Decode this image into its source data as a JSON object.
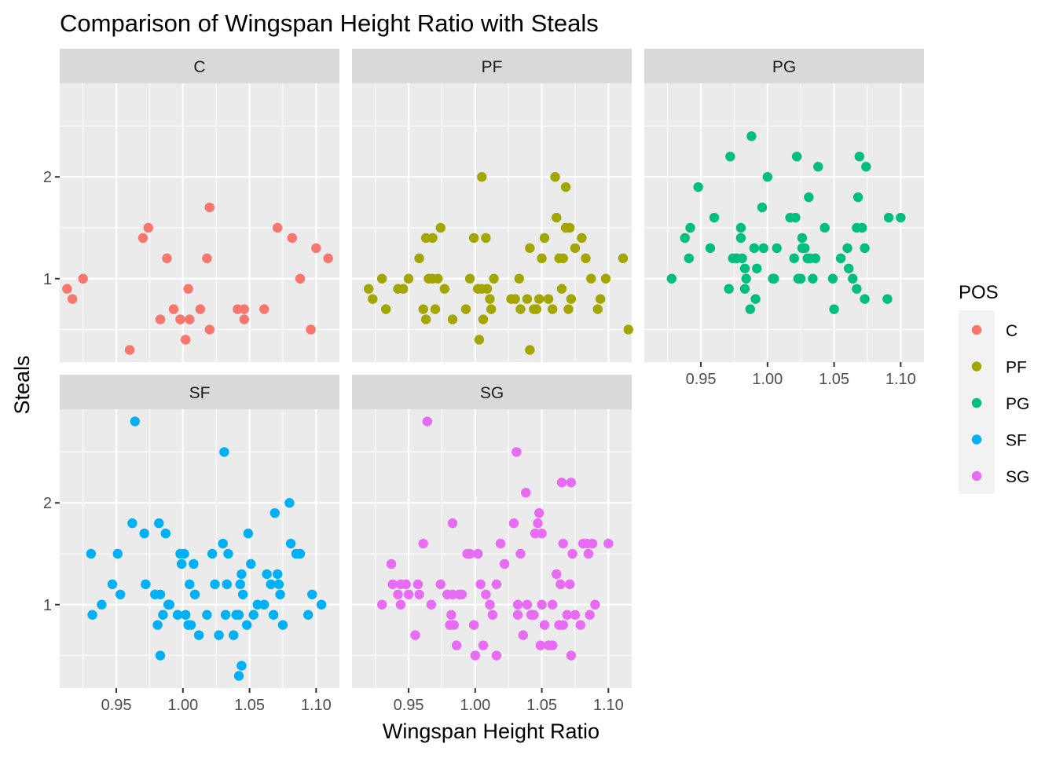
{
  "chart_data": {
    "type": "scatter",
    "title": "Comparison of Wingspan Height Ratio with Steals",
    "xlabel": "Wingspan Height Ratio",
    "ylabel": "Steals",
    "x_ticks": [
      0.95,
      1.0,
      1.05,
      1.1
    ],
    "x_tick_labels": [
      "0.95",
      "1.00",
      "1.05",
      "1.10"
    ],
    "y_ticks": [
      1,
      2
    ],
    "y_tick_labels": [
      "1",
      "2"
    ],
    "xlim": [
      0.9075,
      1.1175
    ],
    "ylim": [
      0.18,
      2.92
    ],
    "grid": true,
    "legend": {
      "title": "POS",
      "position": "right",
      "entries": [
        "C",
        "PF",
        "PG",
        "SF",
        "SG"
      ]
    },
    "colors": {
      "C": "#F8766D",
      "PF": "#A3A500",
      "PG": "#00BF7D",
      "SF": "#00B0F6",
      "SG": "#E76BF3",
      "panel_bg": "#EBEBEB",
      "strip_bg": "#D9D9D9",
      "grid": "#FFFFFF"
    },
    "panels": [
      {
        "label": "C",
        "points": [
          [
            0.913,
            0.9
          ],
          [
            0.917,
            0.8
          ],
          [
            0.925,
            1.0
          ],
          [
            0.96,
            0.3
          ],
          [
            0.97,
            1.4
          ],
          [
            0.974,
            1.5
          ],
          [
            0.983,
            0.6
          ],
          [
            0.988,
            1.2
          ],
          [
            0.993,
            0.7
          ],
          [
            0.998,
            0.6
          ],
          [
            1.002,
            0.4
          ],
          [
            1.004,
            0.9
          ],
          [
            1.005,
            0.6
          ],
          [
            1.013,
            0.7
          ],
          [
            1.018,
            1.2
          ],
          [
            1.02,
            1.7
          ],
          [
            1.02,
            0.5
          ],
          [
            1.041,
            0.7
          ],
          [
            1.046,
            0.7
          ],
          [
            1.046,
            0.6
          ],
          [
            1.061,
            0.7
          ],
          [
            1.071,
            1.5
          ],
          [
            1.082,
            1.4
          ],
          [
            1.088,
            1.0
          ],
          [
            1.096,
            0.5
          ],
          [
            1.1,
            1.3
          ],
          [
            1.109,
            1.2
          ]
        ]
      },
      {
        "label": "PF",
        "points": [
          [
            0.92,
            0.9
          ],
          [
            0.923,
            0.8
          ],
          [
            0.93,
            1.0
          ],
          [
            0.933,
            0.7
          ],
          [
            0.942,
            0.9
          ],
          [
            0.946,
            0.9
          ],
          [
            0.95,
            1.0
          ],
          [
            0.958,
            1.2
          ],
          [
            0.961,
            0.7
          ],
          [
            0.963,
            1.4
          ],
          [
            0.963,
            0.6
          ],
          [
            0.965,
            1.0
          ],
          [
            0.968,
            1.4
          ],
          [
            0.968,
            1.0
          ],
          [
            0.97,
            0.7
          ],
          [
            0.972,
            1.0
          ],
          [
            0.974,
            1.5
          ],
          [
            0.977,
            0.9
          ],
          [
            0.983,
            0.6
          ],
          [
            0.993,
            0.7
          ],
          [
            0.996,
            1.0
          ],
          [
            0.999,
            1.4
          ],
          [
            1.002,
            0.9
          ],
          [
            1.003,
            0.4
          ],
          [
            1.005,
            2.0
          ],
          [
            1.006,
            0.6
          ],
          [
            1.005,
            0.9
          ],
          [
            1.008,
            1.4
          ],
          [
            1.009,
            0.9
          ],
          [
            1.011,
            0.8
          ],
          [
            1.012,
            0.7
          ],
          [
            1.014,
            1.0
          ],
          [
            1.027,
            0.8
          ],
          [
            1.03,
            0.8
          ],
          [
            1.033,
            1.0
          ],
          [
            1.034,
            0.7
          ],
          [
            1.039,
            0.8
          ],
          [
            1.041,
            1.3
          ],
          [
            1.041,
            0.3
          ],
          [
            1.044,
            0.7
          ],
          [
            1.046,
            0.7
          ],
          [
            1.048,
            0.8
          ],
          [
            1.05,
            1.2
          ],
          [
            1.052,
            1.4
          ],
          [
            1.055,
            0.8
          ],
          [
            1.058,
            0.7
          ],
          [
            1.06,
            2.0
          ],
          [
            1.061,
            1.6
          ],
          [
            1.063,
            1.2
          ],
          [
            1.065,
            0.9
          ],
          [
            1.066,
            1.2
          ],
          [
            1.068,
            1.9
          ],
          [
            1.068,
            1.5
          ],
          [
            1.07,
            0.7
          ],
          [
            1.071,
            1.5
          ],
          [
            1.072,
            0.8
          ],
          [
            1.075,
            1.3
          ],
          [
            1.08,
            1.4
          ],
          [
            1.083,
            1.2
          ],
          [
            1.087,
            1.0
          ],
          [
            1.092,
            0.7
          ],
          [
            1.094,
            0.8
          ],
          [
            1.098,
            1.0
          ],
          [
            1.111,
            1.2
          ],
          [
            1.115,
            0.5
          ]
        ]
      },
      {
        "label": "PG",
        "points": [
          [
            0.928,
            1.0
          ],
          [
            0.938,
            1.4
          ],
          [
            0.941,
            1.2
          ],
          [
            0.942,
            1.5
          ],
          [
            0.948,
            1.9
          ],
          [
            0.957,
            1.3
          ],
          [
            0.96,
            1.6
          ],
          [
            0.971,
            0.9
          ],
          [
            0.972,
            2.2
          ],
          [
            0.974,
            1.2
          ],
          [
            0.977,
            1.2
          ],
          [
            0.98,
            1.5
          ],
          [
            0.98,
            1.4
          ],
          [
            0.981,
            1.2
          ],
          [
            0.983,
            1.1
          ],
          [
            0.983,
            0.9
          ],
          [
            0.984,
            1.0
          ],
          [
            0.987,
            0.7
          ],
          [
            0.988,
            2.4
          ],
          [
            0.99,
            1.3
          ],
          [
            0.991,
            0.8
          ],
          [
            0.992,
            1.1
          ],
          [
            0.996,
            1.7
          ],
          [
            0.997,
            1.3
          ],
          [
            1.0,
            2.0
          ],
          [
            1.004,
            1.0
          ],
          [
            1.005,
            1.0
          ],
          [
            1.007,
            1.3
          ],
          [
            1.017,
            1.6
          ],
          [
            1.02,
            1.2
          ],
          [
            1.021,
            1.6
          ],
          [
            1.022,
            2.2
          ],
          [
            1.023,
            1.0
          ],
          [
            1.025,
            1.0
          ],
          [
            1.026,
            1.4
          ],
          [
            1.026,
            1.3
          ],
          [
            1.028,
            1.3
          ],
          [
            1.03,
            1.2
          ],
          [
            1.031,
            1.8
          ],
          [
            1.032,
            1.2
          ],
          [
            1.034,
            1.0
          ],
          [
            1.036,
            1.2
          ],
          [
            1.038,
            2.1
          ],
          [
            1.043,
            1.5
          ],
          [
            1.049,
            1.0
          ],
          [
            1.05,
            0.7
          ],
          [
            1.055,
            1.2
          ],
          [
            1.06,
            1.3
          ],
          [
            1.061,
            1.1
          ],
          [
            1.064,
            1.0
          ],
          [
            1.067,
            1.5
          ],
          [
            1.067,
            0.9
          ],
          [
            1.068,
            1.8
          ],
          [
            1.069,
            2.2
          ],
          [
            1.071,
            1.5
          ],
          [
            1.073,
            1.3
          ],
          [
            1.073,
            0.8
          ],
          [
            1.074,
            2.1
          ],
          [
            1.09,
            0.8
          ],
          [
            1.091,
            1.6
          ],
          [
            1.1,
            1.6
          ]
        ]
      },
      {
        "label": "SF",
        "points": [
          [
            0.931,
            1.5
          ],
          [
            0.932,
            0.9
          ],
          [
            0.939,
            1.0
          ],
          [
            0.947,
            1.2
          ],
          [
            0.951,
            1.5
          ],
          [
            0.953,
            1.1
          ],
          [
            0.962,
            1.8
          ],
          [
            0.964,
            2.8
          ],
          [
            0.971,
            1.7
          ],
          [
            0.972,
            1.2
          ],
          [
            0.979,
            1.1
          ],
          [
            0.981,
            0.8
          ],
          [
            0.982,
            1.8
          ],
          [
            0.983,
            1.1
          ],
          [
            0.983,
            0.5
          ],
          [
            0.985,
            0.9
          ],
          [
            0.987,
            1.7
          ],
          [
            0.989,
            1.0
          ],
          [
            0.99,
            1.0
          ],
          [
            0.996,
            0.9
          ],
          [
            0.998,
            1.5
          ],
          [
            0.999,
            1.4
          ],
          [
            1.001,
            1.5
          ],
          [
            1.002,
            0.9
          ],
          [
            1.004,
            0.8
          ],
          [
            1.005,
            1.2
          ],
          [
            1.006,
            0.8
          ],
          [
            1.008,
            1.4
          ],
          [
            1.009,
            1.1
          ],
          [
            1.012,
            0.7
          ],
          [
            1.018,
            0.9
          ],
          [
            1.022,
            1.5
          ],
          [
            1.024,
            1.2
          ],
          [
            1.027,
            0.7
          ],
          [
            1.03,
            1.6
          ],
          [
            1.031,
            2.5
          ],
          [
            1.032,
            0.9
          ],
          [
            1.033,
            1.2
          ],
          [
            1.034,
            1.5
          ],
          [
            1.038,
            0.7
          ],
          [
            1.04,
            0.9
          ],
          [
            1.042,
            0.9
          ],
          [
            1.042,
            0.3
          ],
          [
            1.043,
            1.2
          ],
          [
            1.044,
            1.3
          ],
          [
            1.044,
            0.4
          ],
          [
            1.045,
            1.1
          ],
          [
            1.048,
            0.8
          ],
          [
            1.049,
            1.7
          ],
          [
            1.051,
            1.4
          ],
          [
            1.053,
            0.9
          ],
          [
            1.056,
            1.0
          ],
          [
            1.061,
            1.0
          ],
          [
            1.063,
            1.3
          ],
          [
            1.066,
            1.2
          ],
          [
            1.068,
            0.9
          ],
          [
            1.069,
            1.9
          ],
          [
            1.071,
            1.3
          ],
          [
            1.072,
            1.2
          ],
          [
            1.073,
            1.1
          ],
          [
            1.075,
            0.8
          ],
          [
            1.08,
            2.0
          ],
          [
            1.081,
            1.6
          ],
          [
            1.085,
            1.5
          ],
          [
            1.088,
            1.5
          ],
          [
            1.094,
            0.9
          ],
          [
            1.097,
            1.1
          ],
          [
            1.104,
            1.0
          ]
        ]
      },
      {
        "label": "SG",
        "points": [
          [
            0.93,
            1.0
          ],
          [
            0.937,
            1.4
          ],
          [
            0.938,
            1.2
          ],
          [
            0.942,
            1.1
          ],
          [
            0.944,
            1.2
          ],
          [
            0.944,
            1.0
          ],
          [
            0.948,
            1.2
          ],
          [
            0.95,
            1.1
          ],
          [
            0.955,
            0.7
          ],
          [
            0.957,
            1.2
          ],
          [
            0.958,
            1.1
          ],
          [
            0.961,
            1.6
          ],
          [
            0.964,
            2.8
          ],
          [
            0.967,
            1.0
          ],
          [
            0.974,
            1.2
          ],
          [
            0.979,
            1.1
          ],
          [
            0.981,
            0.8
          ],
          [
            0.982,
            0.9
          ],
          [
            0.983,
            1.1
          ],
          [
            0.983,
            1.8
          ],
          [
            0.984,
            0.8
          ],
          [
            0.986,
            0.6
          ],
          [
            0.988,
            1.1
          ],
          [
            0.99,
            1.1
          ],
          [
            0.994,
            1.5
          ],
          [
            0.996,
            1.5
          ],
          [
            0.999,
            0.8
          ],
          [
            1.0,
            0.5
          ],
          [
            1.002,
            1.5
          ],
          [
            1.004,
            1.2
          ],
          [
            1.006,
            0.6
          ],
          [
            1.008,
            1.1
          ],
          [
            1.011,
            1.0
          ],
          [
            1.013,
            0.9
          ],
          [
            1.016,
            1.2
          ],
          [
            1.016,
            0.5
          ],
          [
            1.019,
            1.6
          ],
          [
            1.022,
            1.4
          ],
          [
            1.029,
            1.8
          ],
          [
            1.031,
            2.5
          ],
          [
            1.032,
            0.9
          ],
          [
            1.032,
            1.0
          ],
          [
            1.034,
            1.5
          ],
          [
            1.036,
            0.7
          ],
          [
            1.038,
            2.1
          ],
          [
            1.039,
            1.0
          ],
          [
            1.042,
            0.9
          ],
          [
            1.044,
            0.9
          ],
          [
            1.045,
            1.7
          ],
          [
            1.047,
            1.8
          ],
          [
            1.048,
            1.9
          ],
          [
            1.049,
            0.6
          ],
          [
            1.05,
            1.0
          ],
          [
            1.05,
            1.7
          ],
          [
            1.052,
            0.8
          ],
          [
            1.055,
            0.6
          ],
          [
            1.058,
            0.6
          ],
          [
            1.058,
            1.0
          ],
          [
            1.061,
            1.3
          ],
          [
            1.063,
            0.8
          ],
          [
            1.064,
            1.2
          ],
          [
            1.065,
            2.2
          ],
          [
            1.066,
            1.6
          ],
          [
            1.066,
            0.8
          ],
          [
            1.069,
            0.9
          ],
          [
            1.071,
            1.2
          ],
          [
            1.072,
            0.5
          ],
          [
            1.072,
            2.2
          ],
          [
            1.073,
            1.5
          ],
          [
            1.075,
            0.9
          ],
          [
            1.079,
            0.8
          ],
          [
            1.081,
            1.6
          ],
          [
            1.084,
            1.6
          ],
          [
            1.085,
            1.5
          ],
          [
            1.086,
            0.9
          ],
          [
            1.088,
            1.6
          ],
          [
            1.09,
            1.0
          ],
          [
            1.1,
            1.6
          ]
        ]
      }
    ]
  }
}
